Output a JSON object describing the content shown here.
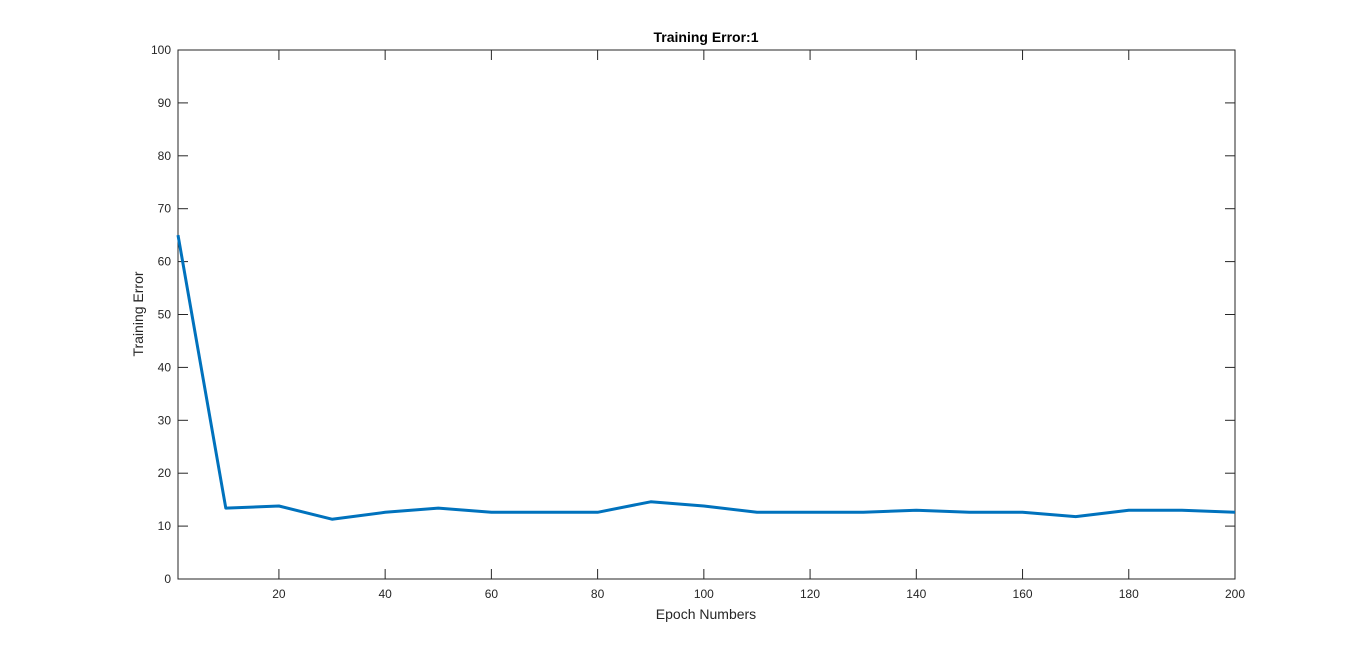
{
  "chart_data": {
    "type": "line",
    "title": "Training Error:1",
    "xlabel": "Epoch Numbers",
    "ylabel": "Training Error",
    "xlim": [
      1,
      200
    ],
    "ylim": [
      0,
      100
    ],
    "xticks": [
      20,
      40,
      60,
      80,
      100,
      120,
      140,
      160,
      180,
      200
    ],
    "yticks": [
      0,
      10,
      20,
      30,
      40,
      50,
      60,
      70,
      80,
      90,
      100
    ],
    "grid": false,
    "series": [
      {
        "color": "#0072BD",
        "x": [
          1,
          10,
          20,
          30,
          40,
          50,
          60,
          70,
          80,
          90,
          100,
          110,
          120,
          130,
          140,
          150,
          160,
          170,
          180,
          190,
          200
        ],
        "y": [
          65,
          13.4,
          13.8,
          11.3,
          12.6,
          13.4,
          12.6,
          12.6,
          12.6,
          14.6,
          13.8,
          12.6,
          12.6,
          12.6,
          13.0,
          12.6,
          12.6,
          11.8,
          13.0,
          13.0,
          12.6
        ]
      }
    ]
  }
}
